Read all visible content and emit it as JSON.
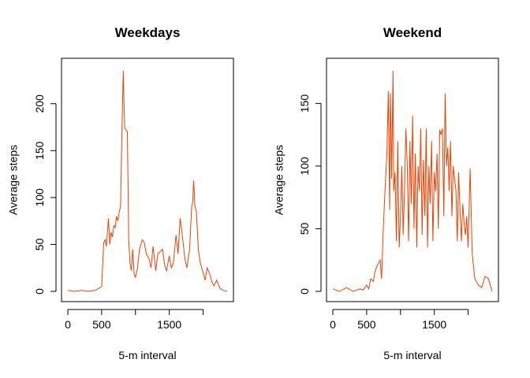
{
  "chart_data": [
    {
      "type": "line",
      "title": "Weekdays",
      "xlabel": "5-m interval",
      "ylabel": "Average steps",
      "xlim": [
        0,
        2355
      ],
      "ylim": [
        0,
        235
      ],
      "xticks": [
        0,
        500,
        1500
      ],
      "yticks": [
        0,
        50,
        100,
        150,
        200
      ],
      "grid": false,
      "color": "#EE4000",
      "series": [
        {
          "x": [
            0,
            100,
            200,
            300,
            400,
            450,
            500,
            530,
            550,
            570,
            600,
            620,
            640,
            660,
            680,
            700,
            720,
            740,
            760,
            780,
            800,
            810,
            820,
            830,
            835,
            840,
            850,
            860,
            880,
            900,
            920,
            940,
            960,
            980,
            1000,
            1030,
            1060,
            1100,
            1130,
            1160,
            1200,
            1230,
            1260,
            1300,
            1330,
            1360,
            1400,
            1430,
            1460,
            1500,
            1530,
            1560,
            1600,
            1630,
            1660,
            1700,
            1730,
            1760,
            1800,
            1830,
            1845,
            1860,
            1880,
            1900,
            1930,
            1960,
            2000,
            2030,
            2060,
            2100,
            2130,
            2160,
            2200,
            2250,
            2300,
            2355
          ],
          "y": [
            1,
            0,
            1,
            0,
            1,
            3,
            5,
            52,
            55,
            48,
            78,
            50,
            63,
            58,
            70,
            68,
            80,
            75,
            85,
            90,
            170,
            205,
            235,
            200,
            190,
            175,
            173,
            172,
            170,
            55,
            30,
            22,
            45,
            18,
            15,
            25,
            45,
            55,
            52,
            40,
            35,
            25,
            48,
            22,
            40,
            42,
            45,
            28,
            22,
            38,
            25,
            30,
            60,
            40,
            78,
            55,
            35,
            25,
            45,
            90,
            95,
            118,
            90,
            85,
            45,
            30,
            20,
            12,
            25,
            18,
            10,
            6,
            12,
            3,
            1,
            0
          ]
        }
      ]
    },
    {
      "type": "line",
      "title": "Weekend",
      "xlabel": "5-m interval",
      "ylabel": "Average steps",
      "xlim": [
        0,
        2355
      ],
      "ylim": [
        0,
        176
      ],
      "xticks": [
        0,
        500,
        1500
      ],
      "yticks": [
        0,
        50,
        100,
        150
      ],
      "grid": false,
      "color": "#EE4000",
      "series": [
        {
          "x": [
            0,
            100,
            200,
            300,
            400,
            450,
            500,
            530,
            560,
            600,
            620,
            650,
            700,
            720,
            750,
            780,
            800,
            820,
            840,
            850,
            860,
            870,
            890,
            900,
            920,
            940,
            960,
            980,
            1000,
            1020,
            1040,
            1060,
            1080,
            1100,
            1120,
            1140,
            1160,
            1180,
            1200,
            1220,
            1240,
            1260,
            1280,
            1300,
            1320,
            1340,
            1360,
            1380,
            1400,
            1420,
            1440,
            1460,
            1480,
            1500,
            1520,
            1540,
            1560,
            1580,
            1600,
            1620,
            1640,
            1660,
            1680,
            1700,
            1720,
            1740,
            1760,
            1780,
            1800,
            1820,
            1840,
            1860,
            1880,
            1900,
            1920,
            1940,
            1960,
            1980,
            2000,
            2030,
            2060,
            2100,
            2150,
            2200,
            2250,
            2300,
            2355
          ],
          "y": [
            2,
            0,
            3,
            0,
            2,
            1,
            5,
            2,
            10,
            8,
            15,
            20,
            25,
            10,
            55,
            90,
            110,
            160,
            65,
            158,
            130,
            90,
            176,
            80,
            95,
            40,
            120,
            35,
            60,
            100,
            45,
            80,
            130,
            100,
            40,
            120,
            70,
            140,
            50,
            110,
            35,
            100,
            80,
            130,
            45,
            105,
            60,
            130,
            35,
            100,
            70,
            120,
            40,
            95,
            80,
            110,
            50,
            129,
            125,
            130,
            60,
            158,
            100,
            115,
            80,
            120,
            60,
            100,
            90,
            80,
            40,
            95,
            65,
            40,
            70,
            55,
            45,
            60,
            35,
            98,
            30,
            10,
            5,
            3,
            12,
            10,
            0
          ]
        }
      ]
    }
  ]
}
